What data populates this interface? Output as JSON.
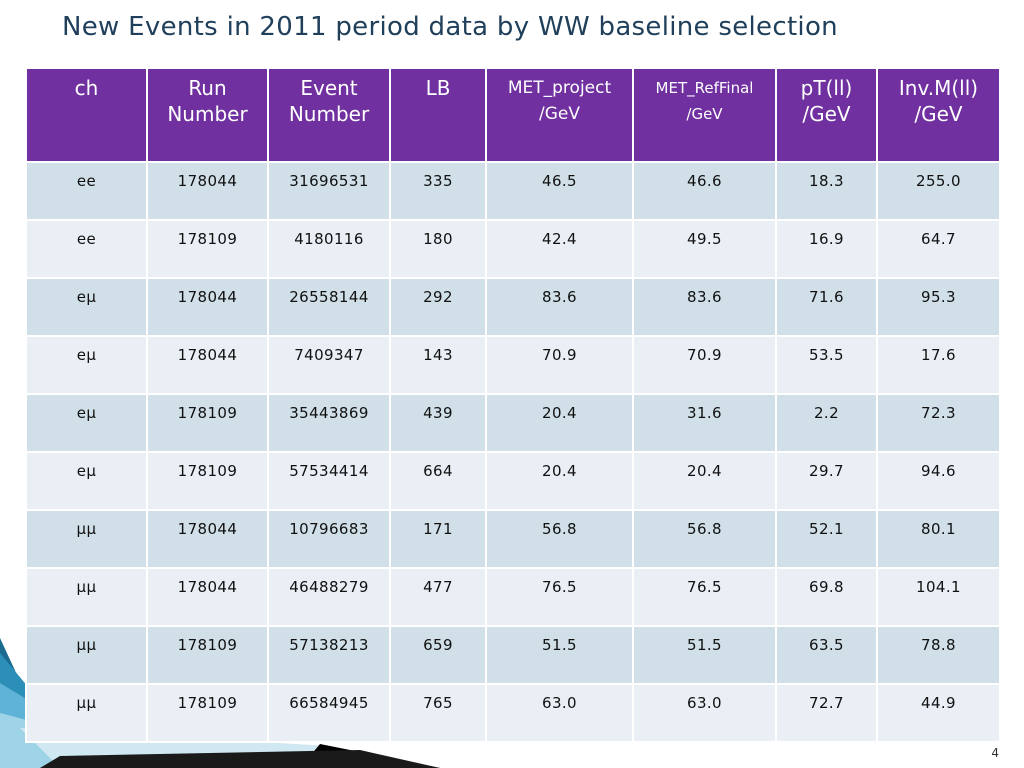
{
  "slide": {
    "title": "New Events in 2011 period data by WW baseline selection",
    "page_number": "4"
  },
  "table": {
    "headers": [
      {
        "line1": "ch",
        "line2": ""
      },
      {
        "line1": "Run",
        "line2": "Number"
      },
      {
        "line1": "Event",
        "line2": "Number"
      },
      {
        "line1": "LB",
        "line2": ""
      },
      {
        "line1": "MET_project",
        "line2": "/GeV"
      },
      {
        "line1": "MET_RefFinal",
        "line2": "/GeV"
      },
      {
        "line1": "pT(ll)",
        "line2": "/GeV"
      },
      {
        "line1": "Inv.M(ll)",
        "line2": "/GeV"
      }
    ],
    "rows": [
      [
        "ee",
        "178044",
        "31696531",
        "335",
        "46.5",
        "46.6",
        "18.3",
        "255.0"
      ],
      [
        "ee",
        "178109",
        "4180116",
        "180",
        "42.4",
        "49.5",
        "16.9",
        "64.7"
      ],
      [
        "eμ",
        "178044",
        "26558144",
        "292",
        "83.6",
        "83.6",
        "71.6",
        "95.3"
      ],
      [
        "eμ",
        "178044",
        "7409347",
        "143",
        "70.9",
        "70.9",
        "53.5",
        "17.6"
      ],
      [
        "eμ",
        "178109",
        "35443869",
        "439",
        "20.4",
        "31.6",
        "2.2",
        "72.3"
      ],
      [
        "eμ",
        "178109",
        "57534414",
        "664",
        "20.4",
        "20.4",
        "29.7",
        "94.6"
      ],
      [
        "μμ",
        "178044",
        "10796683",
        "171",
        "56.8",
        "56.8",
        "52.1",
        "80.1"
      ],
      [
        "μμ",
        "178044",
        "46488279",
        "477",
        "76.5",
        "76.5",
        "69.8",
        "104.1"
      ],
      [
        "μμ",
        "178109",
        "57138213",
        "659",
        "51.5",
        "51.5",
        "63.5",
        "78.8"
      ],
      [
        "μμ",
        "178109",
        "66584945",
        "765",
        "63.0",
        "63.0",
        "72.7",
        "44.9"
      ]
    ]
  },
  "colors": {
    "header_bg": "#7030a0",
    "row_odd": "#d0dfe8",
    "row_even": "#e9eff5",
    "title": "#1f3f5b"
  }
}
